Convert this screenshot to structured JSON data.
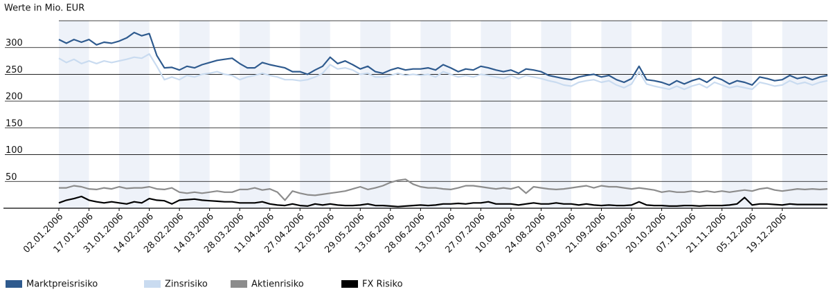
{
  "chart_data": {
    "type": "line",
    "y_label": "Werte in Mio. EUR",
    "categories": [
      "02.01.2006",
      null,
      null,
      null,
      "17.01.2006",
      null,
      null,
      null,
      "31.01.2006",
      null,
      null,
      null,
      "14.02.2006",
      null,
      null,
      null,
      "28.02.2006",
      null,
      null,
      null,
      "14.03.2006",
      null,
      null,
      null,
      "28.03.2006",
      null,
      null,
      null,
      "11.04.2006",
      null,
      null,
      null,
      "27.04.2006",
      null,
      null,
      null,
      "12.05.2006",
      null,
      null,
      null,
      "29.05.2006",
      null,
      null,
      null,
      "13.06.2006",
      null,
      null,
      null,
      "28.06.2006",
      null,
      null,
      null,
      "13.07.2006",
      null,
      null,
      null,
      "27.07.2006",
      null,
      null,
      null,
      "10.08.2006",
      null,
      null,
      null,
      "24.08.2006",
      null,
      null,
      null,
      "07.09.2006",
      null,
      null,
      null,
      "21.09.2006",
      null,
      null,
      null,
      "06.10.2006",
      null,
      null,
      null,
      "20.10.2006",
      null,
      null,
      null,
      "07.11.2006",
      null,
      null,
      null,
      "21.11.2006",
      null,
      null,
      null,
      "05.12.2006",
      null,
      null,
      null,
      "19.12.2006",
      null,
      null,
      null,
      null,
      null,
      null
    ],
    "ylim": [
      0,
      350
    ],
    "yticks": [
      50,
      100,
      150,
      200,
      250,
      300
    ],
    "grid": true,
    "series": [
      {
        "name": "Marktpreisrisiko",
        "color": "#2e5a8e",
        "values": [
          315,
          308,
          315,
          310,
          315,
          305,
          310,
          308,
          312,
          318,
          328,
          322,
          326,
          285,
          262,
          263,
          258,
          265,
          262,
          268,
          272,
          276,
          278,
          280,
          270,
          262,
          262,
          272,
          268,
          265,
          262,
          255,
          255,
          250,
          258,
          265,
          282,
          270,
          275,
          268,
          260,
          265,
          255,
          252,
          258,
          262,
          258,
          260,
          260,
          262,
          258,
          268,
          262,
          255,
          260,
          258,
          265,
          262,
          258,
          255,
          258,
          252,
          260,
          258,
          255,
          248,
          245,
          242,
          240,
          245,
          248,
          250,
          245,
          248,
          240,
          235,
          242,
          265,
          240,
          238,
          235,
          230,
          238,
          232,
          238,
          242,
          235,
          245,
          240,
          232,
          238,
          235,
          230,
          245,
          242,
          238,
          240,
          248,
          242,
          245,
          240,
          245,
          248
        ]
      },
      {
        "name": "Zinsrisiko",
        "color": "#c9dbf0",
        "values": [
          280,
          272,
          278,
          270,
          275,
          270,
          275,
          272,
          275,
          278,
          282,
          280,
          288,
          265,
          240,
          245,
          240,
          248,
          245,
          250,
          252,
          255,
          250,
          248,
          240,
          245,
          248,
          252,
          248,
          245,
          240,
          240,
          238,
          240,
          245,
          252,
          268,
          260,
          262,
          258,
          250,
          252,
          245,
          245,
          248,
          252,
          248,
          250,
          248,
          250,
          245,
          255,
          250,
          245,
          248,
          245,
          250,
          248,
          245,
          242,
          248,
          242,
          248,
          245,
          242,
          238,
          235,
          230,
          228,
          235,
          238,
          240,
          235,
          238,
          230,
          225,
          232,
          255,
          232,
          228,
          225,
          222,
          228,
          222,
          228,
          232,
          225,
          235,
          230,
          225,
          228,
          225,
          222,
          235,
          232,
          228,
          230,
          238,
          232,
          235,
          230,
          235,
          238
        ]
      },
      {
        "name": "Aktienrisiko",
        "color": "#8c8c8c",
        "values": [
          38,
          38,
          42,
          40,
          36,
          35,
          38,
          36,
          40,
          37,
          38,
          38,
          40,
          36,
          35,
          38,
          30,
          28,
          30,
          28,
          30,
          32,
          30,
          30,
          35,
          35,
          38,
          34,
          36,
          30,
          15,
          32,
          28,
          25,
          24,
          26,
          28,
          30,
          32,
          36,
          40,
          35,
          38,
          42,
          48,
          52,
          54,
          45,
          40,
          38,
          38,
          36,
          35,
          38,
          42,
          42,
          40,
          38,
          36,
          38,
          36,
          40,
          28,
          40,
          38,
          36,
          35,
          36,
          38,
          40,
          42,
          38,
          42,
          40,
          40,
          38,
          36,
          38,
          36,
          34,
          30,
          32,
          30,
          30,
          32,
          30,
          32,
          30,
          32,
          30,
          32,
          34,
          32,
          36,
          38,
          34,
          32,
          34,
          36,
          35,
          36,
          35,
          36
        ]
      },
      {
        "name": "FX Risiko",
        "color": "#000000",
        "values": [
          10,
          15,
          18,
          22,
          15,
          12,
          10,
          12,
          10,
          8,
          12,
          10,
          18,
          15,
          14,
          8,
          15,
          16,
          17,
          15,
          14,
          13,
          12,
          12,
          10,
          10,
          10,
          12,
          8,
          6,
          5,
          8,
          5,
          4,
          8,
          6,
          8,
          6,
          5,
          5,
          6,
          8,
          5,
          5,
          4,
          3,
          4,
          5,
          6,
          5,
          6,
          8,
          8,
          9,
          8,
          10,
          10,
          12,
          8,
          8,
          8,
          6,
          8,
          10,
          8,
          8,
          10,
          8,
          8,
          6,
          8,
          6,
          5,
          6,
          5,
          5,
          6,
          12,
          6,
          5,
          5,
          4,
          4,
          5,
          5,
          4,
          5,
          5,
          5,
          6,
          8,
          20,
          6,
          8,
          8,
          7,
          6,
          8,
          7,
          7,
          7,
          7,
          7
        ]
      }
    ]
  }
}
